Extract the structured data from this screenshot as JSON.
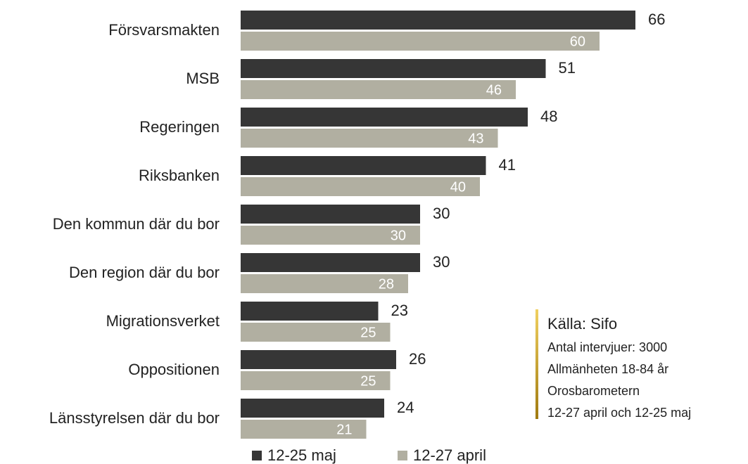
{
  "chart_data": {
    "type": "bar",
    "orientation": "horizontal",
    "categories": [
      "Försvarsmakten",
      "MSB",
      "Regeringen",
      "Riksbanken",
      "Den kommun där du bor",
      "Den region där du bor",
      "Migrationsverket",
      "Oppositionen",
      "Länsstyrelsen där du bor"
    ],
    "series": [
      {
        "name": "12-25 maj",
        "color": "#363636",
        "values": [
          66,
          51,
          48,
          41,
          30,
          30,
          23,
          26,
          24
        ]
      },
      {
        "name": "12-27 april",
        "color": "#b1afa1",
        "values": [
          60,
          46,
          43,
          40,
          30,
          28,
          25,
          25,
          21
        ]
      }
    ],
    "legend": "bottom"
  },
  "source": {
    "title": "Källa: Sifo",
    "lines": [
      "Antal intervjuer: 3000",
      "Allmänheten 18-84 år",
      "Orosbarometern",
      "12-27 april och 12-25 maj"
    ]
  }
}
